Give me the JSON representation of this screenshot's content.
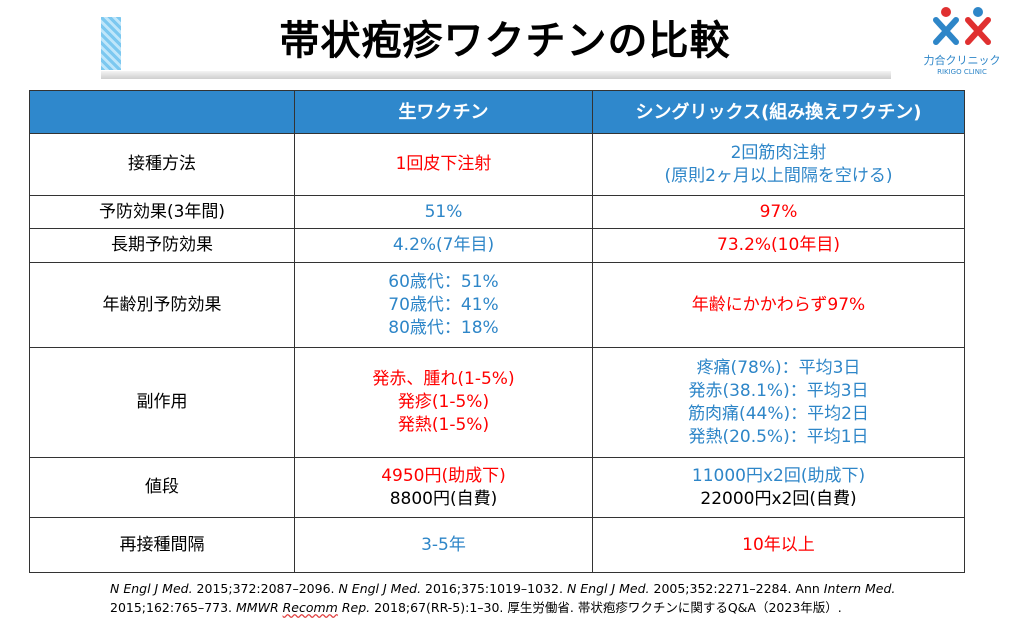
{
  "title": "帯状疱疹ワクチンの比較",
  "logo": {
    "name_jp": "力合クリニック",
    "name_en": "RIKIGO CLINIC"
  },
  "colors": {
    "header_bg": "#2f88cc",
    "red": "#ff0000",
    "blue": "#2e86c8"
  },
  "table": {
    "headers": [
      "",
      "生ワクチン",
      "シングリックス(組み換えワクチン)"
    ],
    "rows": [
      {
        "label": "接種方法",
        "col1": [
          {
            "t": "1回皮下注射",
            "c": "red"
          }
        ],
        "col2": [
          {
            "t": "2回筋肉注射",
            "c": "blue"
          },
          {
            "t": "(原則2ヶ月以上間隔を空ける)",
            "c": "blue"
          }
        ]
      },
      {
        "label": "予防効果(3年間)",
        "col1": [
          {
            "t": "51%",
            "c": "blue"
          }
        ],
        "col2": [
          {
            "t": "97%",
            "c": "red"
          }
        ]
      },
      {
        "label": "長期予防効果",
        "col1": [
          {
            "t": "4.2%(7年目)",
            "c": "blue"
          }
        ],
        "col2": [
          {
            "t": "73.2%(10年目)",
            "c": "red"
          }
        ]
      },
      {
        "label": "年齢別予防効果",
        "col1": [
          {
            "t": "60歳代：51%",
            "c": "blue"
          },
          {
            "t": "70歳代：41%",
            "c": "blue"
          },
          {
            "t": "80歳代：18%",
            "c": "blue"
          }
        ],
        "col2": [
          {
            "t": "年齢にかかわらず97%",
            "c": "red"
          }
        ]
      },
      {
        "label": "副作用",
        "col1": [
          {
            "t": "発赤、腫れ(1-5%)",
            "c": "red"
          },
          {
            "t": "発疹(1-5%)",
            "c": "red"
          },
          {
            "t": "発熱(1-5%)",
            "c": "red"
          }
        ],
        "col2": [
          {
            "t": "疼痛(78%)：平均3日",
            "c": "blue"
          },
          {
            "t": "発赤(38.1%)：平均3日",
            "c": "blue"
          },
          {
            "t": "筋肉痛(44%)：平均2日",
            "c": "blue"
          },
          {
            "t": "発熱(20.5%)：平均1日",
            "c": "blue"
          }
        ]
      },
      {
        "label": "値段",
        "col1": [
          {
            "t": "4950円(助成下)",
            "c": "red"
          },
          {
            "t": "8800円(自費)",
            "c": "black"
          }
        ],
        "col2": [
          {
            "t": "11000円x2回(助成下)",
            "c": "blue"
          },
          {
            "t": "22000円x2回(自費)",
            "c": "black"
          }
        ]
      },
      {
        "label": "再接種間隔",
        "col1": [
          {
            "t": "3-5年",
            "c": "blue"
          }
        ],
        "col2": [
          {
            "t": "10年以上",
            "c": "red"
          }
        ]
      }
    ]
  },
  "footer": [
    {
      "t": "N Engl J Med.",
      "i": true
    },
    {
      "t": " 2015;372:2087–2096.  "
    },
    {
      "t": "N Engl J Med.",
      "i": true
    },
    {
      "t": " 2016;375:1019–1032. "
    },
    {
      "t": "N Engl J Med.",
      "i": true
    },
    {
      "t": " 2005;352:2271–2284. Ann "
    },
    {
      "t": "Intern Med.",
      "i": true
    },
    {
      "t": " 2015;162:765–773. "
    },
    {
      "t": "MMWR ",
      "i": true
    },
    {
      "t": "Recomm",
      "i": true,
      "u": true
    },
    {
      "t": " Rep.",
      "i": true
    },
    {
      "t": " 2018;67(RR-5):1–30. 厚生労働省. 帯状疱疹ワクチンに関するQ&A（2023年版）."
    }
  ]
}
